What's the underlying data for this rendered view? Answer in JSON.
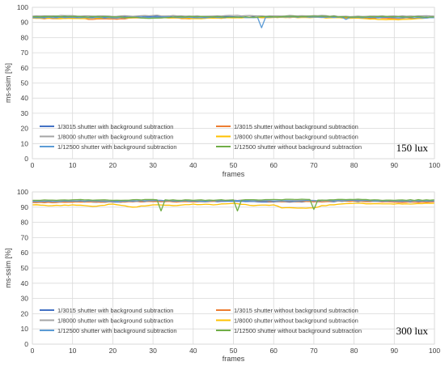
{
  "chart_data": [
    {
      "type": "line",
      "annotation": "150 lux",
      "xlabel": "frames",
      "ylabel": "ms-ssim [%]",
      "xlim": [
        0,
        100
      ],
      "ylim": [
        0,
        100
      ],
      "xticks": [
        "0",
        "10",
        "20",
        "30",
        "40",
        "50",
        "60",
        "70",
        "80",
        "90",
        "100"
      ],
      "yticks": [
        "0",
        "10",
        "20",
        "30",
        "40",
        "50",
        "60",
        "70",
        "80",
        "90",
        "100"
      ],
      "grid": true,
      "legend_position": "lower-left",
      "series": [
        {
          "name": "1/3015 shutter with background subtraction",
          "color": "#4472c4",
          "keys": [
            [
              0,
              93.5
            ],
            [
              10,
              93.8
            ],
            [
              20,
              93.4
            ],
            [
              30,
              94.0
            ],
            [
              40,
              93.6
            ],
            [
              50,
              93.8
            ],
            [
              60,
              93.5
            ],
            [
              70,
              93.9
            ],
            [
              80,
              93.6
            ],
            [
              90,
              93.8
            ],
            [
              100,
              93.7
            ]
          ]
        },
        {
          "name": "1/3015 shutter without background subtraction",
          "color": "#ed7d31",
          "keys": [
            [
              0,
              92.8
            ],
            [
              5,
              92.5
            ],
            [
              10,
              92.8
            ],
            [
              15,
              92.0
            ],
            [
              20,
              92.3
            ],
            [
              30,
              93.2
            ],
            [
              40,
              92.6
            ],
            [
              50,
              93.4
            ],
            [
              60,
              93.3
            ],
            [
              70,
              93.6
            ],
            [
              80,
              93.0
            ],
            [
              90,
              92.8
            ],
            [
              100,
              93.2
            ]
          ]
        },
        {
          "name": "1/8000 shutter with background subtraction",
          "color": "#a5a5a5",
          "keys": [
            [
              0,
              94.2
            ],
            [
              10,
              94.5
            ],
            [
              20,
              94.0
            ],
            [
              30,
              94.6
            ],
            [
              40,
              94.1
            ],
            [
              50,
              94.6
            ],
            [
              60,
              94.3
            ],
            [
              70,
              94.5
            ],
            [
              80,
              94.0
            ],
            [
              90,
              94.3
            ],
            [
              100,
              94.2
            ]
          ]
        },
        {
          "name": "1/8000 shutter without background subtraction",
          "color": "#ffc000",
          "keys": [
            [
              0,
              93.0
            ],
            [
              10,
              92.6
            ],
            [
              20,
              93.0
            ],
            [
              30,
              93.3
            ],
            [
              40,
              92.5
            ],
            [
              50,
              93.0
            ],
            [
              60,
              93.4
            ],
            [
              70,
              93.3
            ],
            [
              80,
              92.8
            ],
            [
              88,
              91.8
            ],
            [
              92,
              92.0
            ],
            [
              100,
              93.2
            ]
          ]
        },
        {
          "name": "1/12500 shutter with background subtraction",
          "color": "#5b9bd5",
          "keys": [
            [
              0,
              93.2
            ],
            [
              10,
              93.4
            ],
            [
              20,
              93.0
            ],
            [
              30,
              93.6
            ],
            [
              40,
              93.2
            ],
            [
              50,
              93.5
            ],
            [
              56,
              93.3
            ],
            [
              57,
              86.5
            ],
            [
              58,
              93.4
            ],
            [
              70,
              93.6
            ],
            [
              77,
              93.4
            ],
            [
              78,
              92.0
            ],
            [
              79,
              93.3
            ],
            [
              90,
              93.2
            ],
            [
              100,
              93.1
            ]
          ]
        },
        {
          "name": "1/12500 shutter without background subtraction",
          "color": "#70ad47",
          "keys": [
            [
              0,
              93.8
            ],
            [
              10,
              94.0
            ],
            [
              20,
              93.7
            ],
            [
              30,
              92.8
            ],
            [
              35,
              93.6
            ],
            [
              40,
              94.0
            ],
            [
              50,
              93.5
            ],
            [
              60,
              93.7
            ],
            [
              70,
              94.2
            ],
            [
              80,
              93.6
            ],
            [
              90,
              93.8
            ],
            [
              100,
              93.6
            ]
          ]
        }
      ]
    },
    {
      "type": "line",
      "annotation": "300 lux",
      "xlabel": "frames",
      "ylabel": "ms-ssim [%]",
      "xlim": [
        0,
        100
      ],
      "ylim": [
        0,
        100
      ],
      "xticks": [
        "0",
        "10",
        "20",
        "30",
        "40",
        "50",
        "60",
        "70",
        "80",
        "90",
        "100"
      ],
      "yticks": [
        "0",
        "10",
        "20",
        "30",
        "40",
        "50",
        "60",
        "70",
        "80",
        "90",
        "100"
      ],
      "grid": true,
      "legend_position": "lower-left",
      "series": [
        {
          "name": "1/3015 shutter with background subtraction",
          "color": "#4472c4",
          "keys": [
            [
              0,
              93.5
            ],
            [
              10,
              93.6
            ],
            [
              20,
              93.3
            ],
            [
              30,
              93.8
            ],
            [
              40,
              93.5
            ],
            [
              50,
              93.8
            ],
            [
              60,
              93.4
            ],
            [
              70,
              93.6
            ],
            [
              80,
              93.9
            ],
            [
              90,
              93.5
            ],
            [
              100,
              93.6
            ]
          ]
        },
        {
          "name": "1/3015 shutter without background subtraction",
          "color": "#ed7d31",
          "keys": [
            [
              0,
              93.0
            ],
            [
              10,
              93.2
            ],
            [
              20,
              93.5
            ],
            [
              30,
              93.6
            ],
            [
              40,
              93.4
            ],
            [
              50,
              94.5
            ],
            [
              60,
              93.8
            ],
            [
              70,
              93.5
            ],
            [
              80,
              94.0
            ],
            [
              90,
              93.3
            ],
            [
              100,
              93.5
            ]
          ]
        },
        {
          "name": "1/8000 shutter with background subtraction",
          "color": "#a5a5a5",
          "keys": [
            [
              0,
              94.0
            ],
            [
              10,
              94.3
            ],
            [
              20,
              94.0
            ],
            [
              30,
              94.5
            ],
            [
              40,
              94.2
            ],
            [
              50,
              94.6
            ],
            [
              60,
              94.1
            ],
            [
              70,
              94.4
            ],
            [
              80,
              94.6
            ],
            [
              90,
              94.0
            ],
            [
              100,
              94.3
            ]
          ]
        },
        {
          "name": "1/8000 shutter without background subtraction",
          "color": "#ffc000",
          "keys": [
            [
              0,
              91.5
            ],
            [
              5,
              91.0
            ],
            [
              10,
              91.5
            ],
            [
              15,
              90.5
            ],
            [
              20,
              92.0
            ],
            [
              25,
              90.0
            ],
            [
              30,
              91.5
            ],
            [
              35,
              91.0
            ],
            [
              40,
              92.0
            ],
            [
              45,
              91.5
            ],
            [
              50,
              92.5
            ],
            [
              55,
              91.0
            ],
            [
              60,
              91.5
            ],
            [
              62,
              89.5
            ],
            [
              70,
              89.5
            ],
            [
              72,
              91.0
            ],
            [
              80,
              92.5
            ],
            [
              90,
              92.0
            ],
            [
              100,
              92.5
            ]
          ]
        },
        {
          "name": "1/12500 shutter with background subtraction",
          "color": "#5b9bd5",
          "keys": [
            [
              0,
              93.8
            ],
            [
              10,
              94.0
            ],
            [
              20,
              93.8
            ],
            [
              30,
              94.2
            ],
            [
              40,
              94.0
            ],
            [
              50,
              94.3
            ],
            [
              60,
              94.0
            ],
            [
              70,
              94.2
            ],
            [
              80,
              94.4
            ],
            [
              90,
              94.0
            ],
            [
              100,
              94.1
            ]
          ]
        },
        {
          "name": "1/12500 shutter without background subtraction",
          "color": "#70ad47",
          "keys": [
            [
              0,
              94.5
            ],
            [
              10,
              94.8
            ],
            [
              20,
              94.5
            ],
            [
              30,
              95.0
            ],
            [
              31,
              94.8
            ],
            [
              32,
              87.5
            ],
            [
              33,
              94.8
            ],
            [
              40,
              94.5
            ],
            [
              50,
              94.8
            ],
            [
              51,
              87.5
            ],
            [
              52,
              94.6
            ],
            [
              60,
              95.0
            ],
            [
              69,
              95.0
            ],
            [
              70,
              88.5
            ],
            [
              71,
              94.6
            ],
            [
              80,
              95.0
            ],
            [
              90,
              94.5
            ],
            [
              100,
              94.8
            ]
          ]
        }
      ]
    }
  ]
}
